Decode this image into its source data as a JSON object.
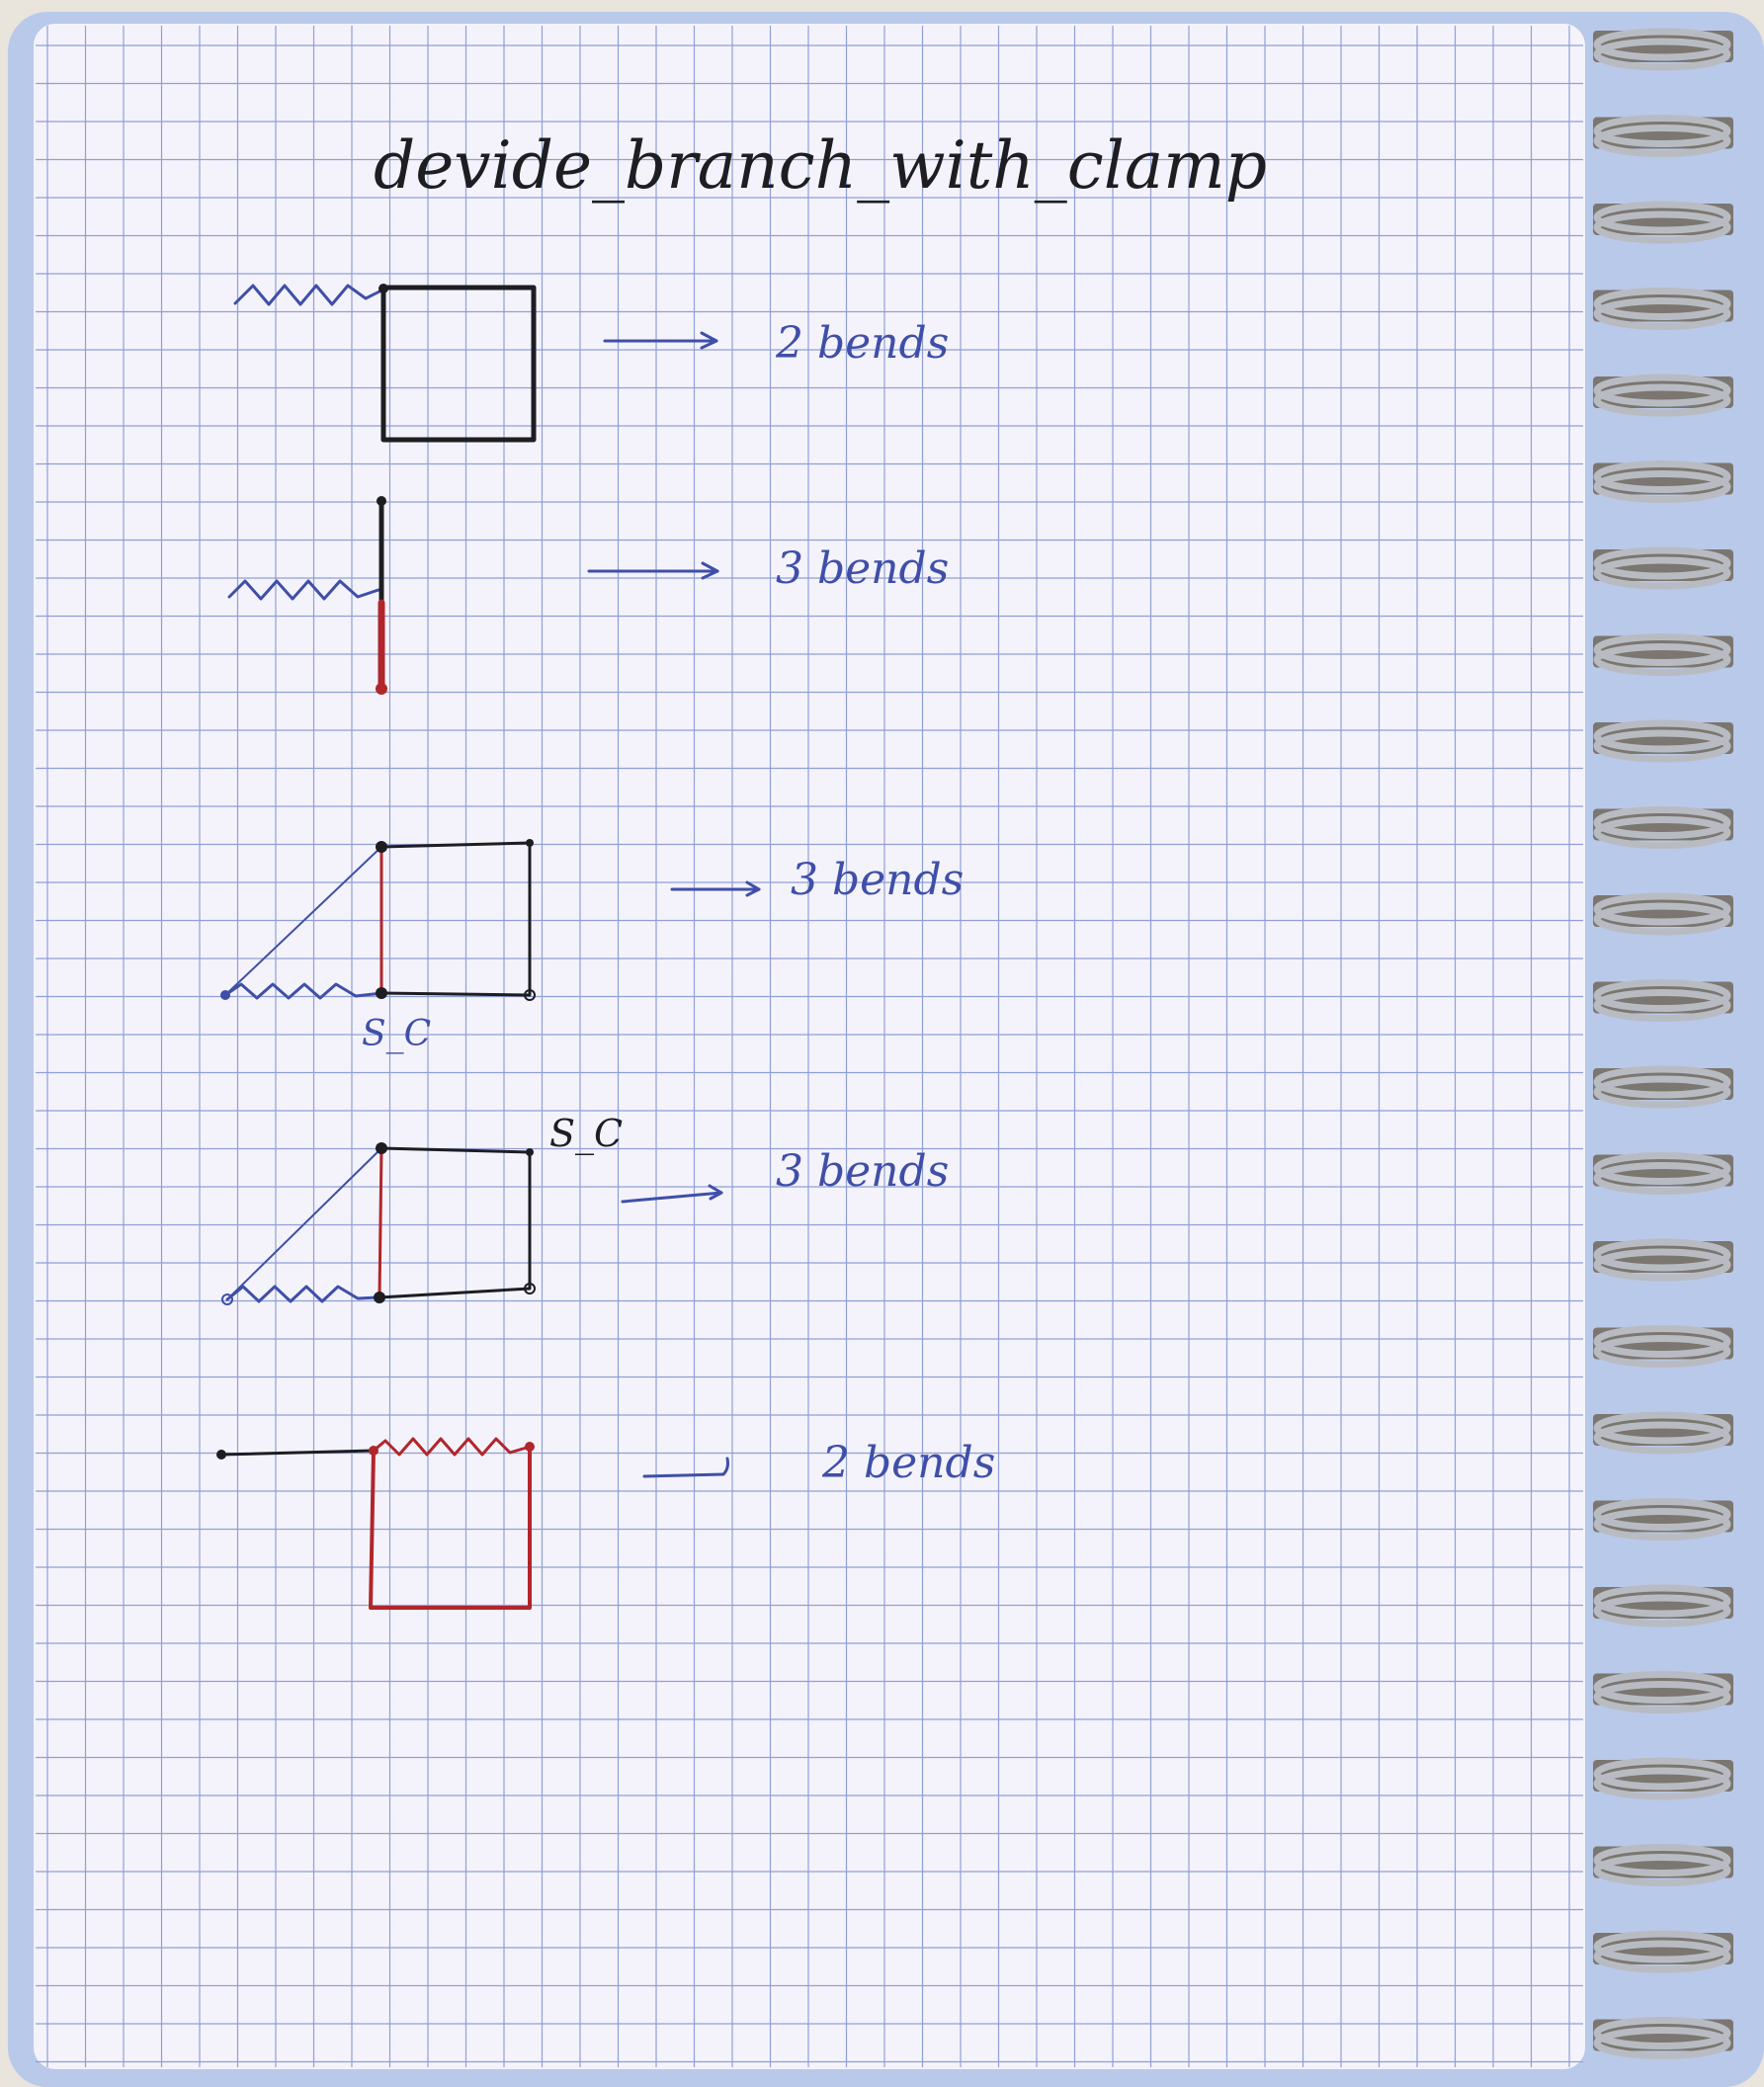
{
  "page": {
    "title": "devide_branch_with_clamp",
    "paper_color": "#f4f3fb",
    "grid_color": "#8f9fd6",
    "cover_color": "#b9c9ea",
    "ink_black": "#1d1d22",
    "ink_red": "#b0262b",
    "ink_blue": "#3f4fa8"
  },
  "sketches": [
    {
      "label": "2 bends",
      "marker": ""
    },
    {
      "label": "3 bends",
      "marker": ""
    },
    {
      "label": "3 bends",
      "marker": "S_C"
    },
    {
      "label": "3 bends",
      "marker": "S_C"
    },
    {
      "label": "2 bends",
      "marker": ""
    }
  ],
  "binding": {
    "ring_count": 24,
    "ring_color": "#b8bcc2"
  }
}
